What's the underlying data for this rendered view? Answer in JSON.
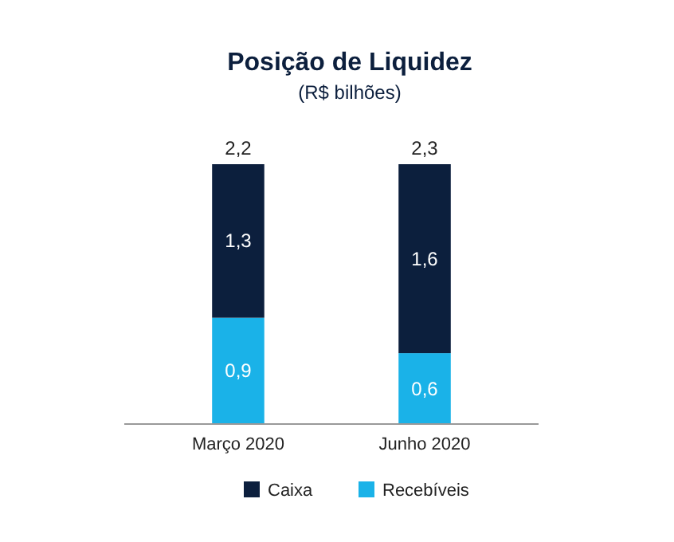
{
  "chart_data": {
    "type": "bar",
    "title": "Posição de Liquidez",
    "subtitle": "(R$ bilhões)",
    "stacked": true,
    "legend": "bottom",
    "categories": [
      "Março 2020",
      "Junho 2020"
    ],
    "series": [
      {
        "name": "Recebíveis",
        "color": "#1ab2e8",
        "values": [
          0.9,
          0.6
        ],
        "value_labels": [
          "0,9",
          "0,6"
        ]
      },
      {
        "name": "Caixa",
        "color": "#0c1f3d",
        "values": [
          1.3,
          1.6
        ],
        "value_labels": [
          "1,3",
          "1,6"
        ]
      }
    ],
    "totals": [
      "2,2",
      "2,3"
    ]
  }
}
